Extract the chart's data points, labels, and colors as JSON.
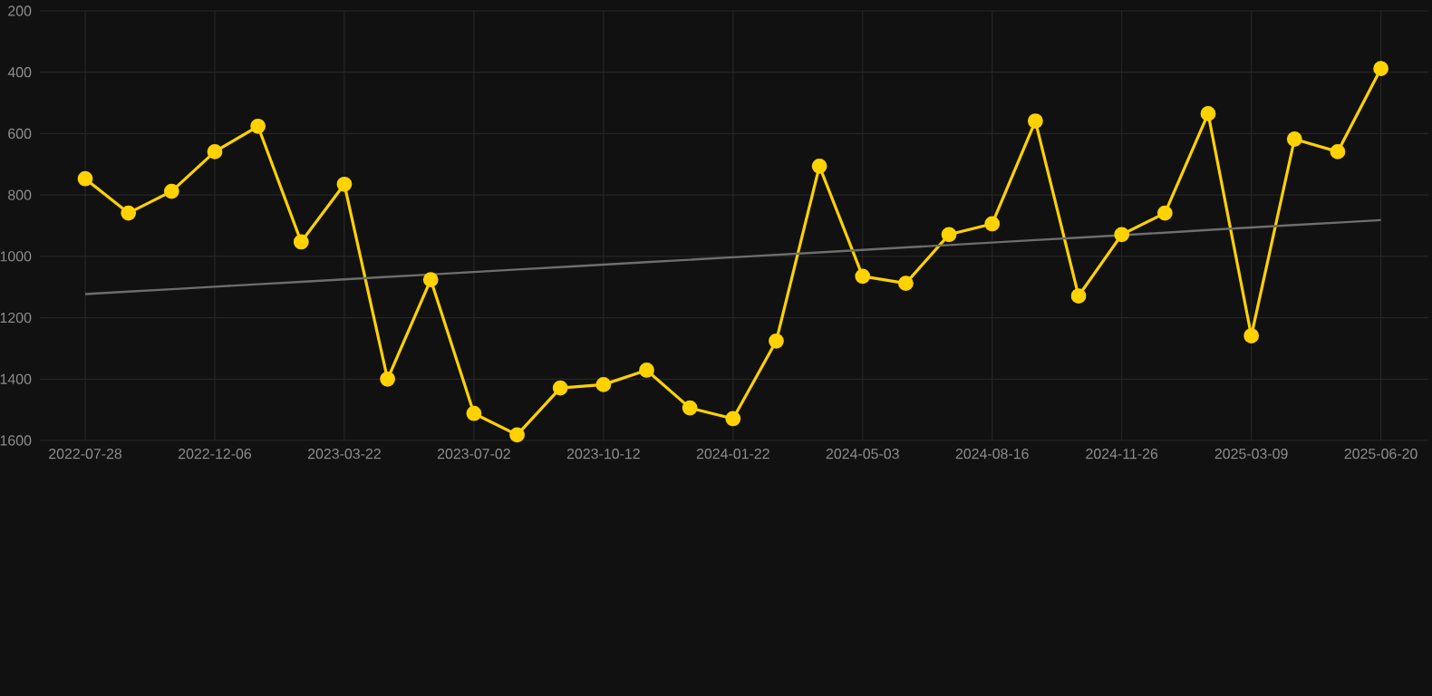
{
  "chart_data": {
    "type": "line",
    "categories": [
      "2022-07-28",
      null,
      null,
      "2022-12-06",
      null,
      null,
      "2023-03-22",
      null,
      null,
      "2023-07-02",
      null,
      null,
      "2023-10-12",
      null,
      null,
      "2024-01-22",
      null,
      null,
      "2024-05-03",
      null,
      null,
      "2024-08-16",
      null,
      null,
      "2024-11-26",
      null,
      null,
      "2025-03-09",
      null,
      null,
      "2025-06-20"
    ],
    "series": [
      {
        "color": "#ffd200",
        "values": [
          747,
          859,
          788,
          659,
          576,
          953,
          765,
          1400,
          1076,
          1512,
          1582,
          1429,
          1418,
          1371,
          1494,
          1529,
          1276,
          706,
          1065,
          1088,
          929,
          894,
          559,
          1129,
          929,
          859,
          535,
          1259,
          618,
          659,
          388
        ],
        "marker": "circle"
      },
      {
        "type": "line",
        "color": "#6e6e6e",
        "values": [
          1123,
          1115,
          1107,
          1099,
          1091,
          1083,
          1075,
          1067,
          1059,
          1051,
          1043,
          1035,
          1027,
          1019,
          1011,
          1003,
          995,
          987,
          979,
          971,
          963,
          955,
          947,
          939,
          null,
          923,
          914,
          906,
          898,
          890,
          882
        ],
        "marker": "none"
      }
    ],
    "ylim": [
      1600,
      200
    ],
    "yticks": [
      200,
      400,
      600,
      800,
      1000,
      1200,
      1400,
      1600
    ],
    "grid": true,
    "legend": false
  }
}
